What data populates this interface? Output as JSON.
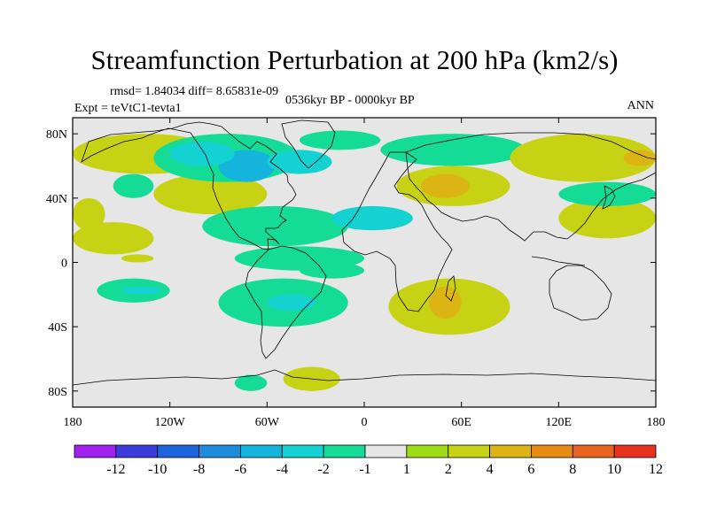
{
  "chart_data": {
    "type": "heatmap",
    "title": "Streamfunction Perturbation at 200 hPa (km2/s)",
    "stats": "rmsd= 1.84034 diff= 8.65831e-09",
    "period": "0536kyr BP - 0000kyr BP",
    "experiment": "Expt = teVtC1-tevta1",
    "season": "ANN",
    "x_ticks": [
      {
        "value": -180,
        "label": "180"
      },
      {
        "value": -120,
        "label": "120W"
      },
      {
        "value": -60,
        "label": "60W"
      },
      {
        "value": 0,
        "label": "0"
      },
      {
        "value": 60,
        "label": "60E"
      },
      {
        "value": 120,
        "label": "120E"
      },
      {
        "value": 180,
        "label": "180"
      }
    ],
    "y_ticks": [
      {
        "value": 80,
        "label": "80N"
      },
      {
        "value": 40,
        "label": "40N"
      },
      {
        "value": 0,
        "label": "0"
      },
      {
        "value": -40,
        "label": "40S"
      },
      {
        "value": -80,
        "label": "80S"
      }
    ],
    "xlim": [
      -180,
      180
    ],
    "ylim": [
      -90,
      90
    ],
    "colorbar": {
      "boundaries": [
        -12,
        -10,
        -8,
        -6,
        -4,
        -2,
        -1,
        1,
        2,
        4,
        6,
        8,
        10,
        12
      ],
      "labels": [
        "-12",
        "-10",
        "-8",
        "-6",
        "-4",
        "-2",
        "-1",
        "1",
        "2",
        "4",
        "6",
        "8",
        "10",
        "12"
      ],
      "colors": [
        "#a020f0",
        "#3c3cdc",
        "#1e64dc",
        "#1e8cdc",
        "#14b4dc",
        "#14d2d2",
        "#14dc96",
        "#e6e6e6",
        "#a0dc14",
        "#c8d214",
        "#dcb414",
        "#e68c14",
        "#e6641e",
        "#e6321e"
      ]
    },
    "anomaly_cells": [
      {
        "lon": [
          -180,
          -90
        ],
        "lat": [
          55,
          80
        ],
        "value": 2
      },
      {
        "lon": [
          -180,
          -160
        ],
        "lat": [
          20,
          40
        ],
        "value": 2
      },
      {
        "lon": [
          -155,
          -130
        ],
        "lat": [
          40,
          55
        ],
        "value": -2
      },
      {
        "lon": [
          -130,
          -60
        ],
        "lat": [
          30,
          55
        ],
        "value": 2
      },
      {
        "lon": [
          -180,
          -130
        ],
        "lat": [
          5,
          25
        ],
        "value": 2
      },
      {
        "lon": [
          -130,
          -40
        ],
        "lat": [
          50,
          80
        ],
        "value": -2
      },
      {
        "lon": [
          -90,
          -55
        ],
        "lat": [
          50,
          70
        ],
        "value": -6
      },
      {
        "lon": [
          -120,
          -80
        ],
        "lat": [
          60,
          75
        ],
        "value": -4
      },
      {
        "lon": [
          -60,
          -20
        ],
        "lat": [
          55,
          70
        ],
        "value": -4
      },
      {
        "lon": [
          -40,
          10
        ],
        "lat": [
          70,
          82
        ],
        "value": -2
      },
      {
        "lon": [
          -100,
          -10
        ],
        "lat": [
          10,
          35
        ],
        "value": -2
      },
      {
        "lon": [
          -20,
          30
        ],
        "lat": [
          20,
          35
        ],
        "value": -4
      },
      {
        "lon": [
          -80,
          0
        ],
        "lat": [
          -5,
          10
        ],
        "value": -2
      },
      {
        "lon": [
          -40,
          0
        ],
        "lat": [
          -10,
          0
        ],
        "value": -2
      },
      {
        "lon": [
          -90,
          -10
        ],
        "lat": [
          -40,
          -10
        ],
        "value": -2
      },
      {
        "lon": [
          -165,
          -120
        ],
        "lat": [
          -25,
          -10
        ],
        "value": -2
      },
      {
        "lon": [
          -150,
          -125
        ],
        "lat": [
          -20,
          -15
        ],
        "value": -4
      },
      {
        "lon": [
          -150,
          -130
        ],
        "lat": [
          0,
          5
        ],
        "value": 2
      },
      {
        "lon": [
          -60,
          -30
        ],
        "lat": [
          -30,
          -20
        ],
        "value": -4
      },
      {
        "lon": [
          -80,
          -60
        ],
        "lat": [
          -80,
          -70
        ],
        "value": -2
      },
      {
        "lon": [
          -50,
          -15
        ],
        "lat": [
          -80,
          -65
        ],
        "value": 2
      },
      {
        "lon": [
          15,
          90
        ],
        "lat": [
          -45,
          -10
        ],
        "value": 2
      },
      {
        "lon": [
          40,
          60
        ],
        "lat": [
          -35,
          -15
        ],
        "value": 4
      },
      {
        "lon": [
          10,
          100
        ],
        "lat": [
          60,
          80
        ],
        "value": -2
      },
      {
        "lon": [
          20,
          90
        ],
        "lat": [
          35,
          60
        ],
        "value": 2
      },
      {
        "lon": [
          35,
          65
        ],
        "lat": [
          40,
          55
        ],
        "value": 4
      },
      {
        "lon": [
          90,
          180
        ],
        "lat": [
          50,
          80
        ],
        "value": 2
      },
      {
        "lon": [
          160,
          180
        ],
        "lat": [
          60,
          70
        ],
        "value": 4
      },
      {
        "lon": [
          120,
          180
        ],
        "lat": [
          15,
          40
        ],
        "value": 2
      },
      {
        "lon": [
          120,
          180
        ],
        "lat": [
          35,
          50
        ],
        "value": -2
      }
    ]
  },
  "colors": {
    "land": "#000000",
    "background": "#e6e6e6",
    "frame": "#000000"
  }
}
